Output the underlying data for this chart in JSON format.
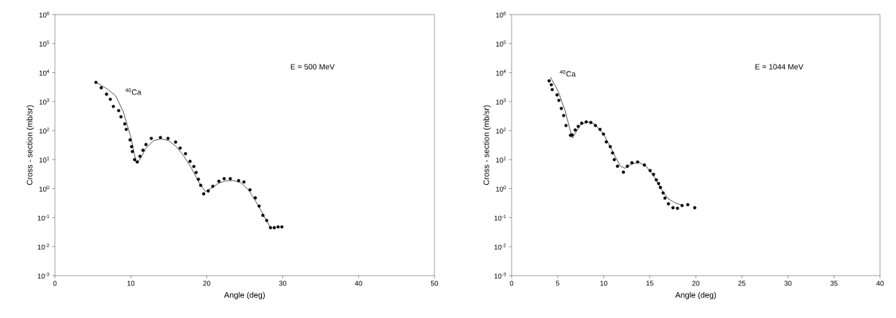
{
  "chart_data": [
    {
      "type": "scatter",
      "xlabel": "Angle (deg)",
      "ylabel": "Cross - section (mb/sr)",
      "log": "y",
      "xlim": [
        0,
        50
      ],
      "xticks": [
        0,
        10,
        20,
        30,
        40,
        50
      ],
      "ylim": [
        0.001,
        1000000
      ],
      "yticks": [
        {
          "value": 0.001,
          "label": "10$^{-3}$"
        },
        {
          "value": 0.01,
          "label": "10$^{-2}$"
        },
        {
          "value": 0.1,
          "label": "10$^{-1}$"
        },
        {
          "value": 1,
          "label": "10$^{0}$"
        },
        {
          "value": 10,
          "label": "10$^{1}$"
        },
        {
          "value": 100,
          "label": "10$^{2}$"
        },
        {
          "value": 1000,
          "label": "10$^{3}$"
        },
        {
          "value": 10000,
          "label": "10$^{4}$"
        },
        {
          "value": 100000,
          "label": "10$^{5}$"
        },
        {
          "value": 1000000,
          "label": "10$^{6}$"
        }
      ],
      "annotations": [
        "E = 500 MeV",
        "$^{40}$Ca"
      ],
      "series": [
        {
          "marker": "circle",
          "color": "#000000",
          "x": [
            5.4,
            6.1,
            6.8,
            7.3,
            7.7,
            8.4,
            8.7,
            9.2,
            9.4,
            9.9,
            10.1,
            10.2,
            10.5,
            10.85,
            11.2,
            11.6,
            12.0,
            12.7,
            13.9,
            14.9,
            15.9,
            16.5,
            17.2,
            17.8,
            18.3,
            18.6,
            18.9,
            19.2,
            19.6,
            20.2,
            20.8,
            21.6,
            22.3,
            23.1,
            24.2,
            24.9,
            25.7,
            26.4,
            26.9,
            27.4,
            27.9,
            28.4,
            28.9,
            29.4,
            29.9
          ],
          "values": [
            4600,
            3000,
            1800,
            1200,
            680,
            490,
            300,
            170,
            110,
            48,
            28,
            19,
            10,
            8.3,
            13,
            21,
            33,
            54,
            58,
            54,
            40,
            25,
            16,
            8.7,
            5.8,
            3.6,
            2.1,
            1.3,
            0.66,
            0.83,
            1.2,
            1.8,
            2.2,
            2.2,
            1.9,
            1.7,
            0.91,
            0.48,
            0.25,
            0.12,
            0.08,
            0.045,
            0.045,
            0.048,
            0.048
          ]
        },
        {
          "type": "line",
          "marker": "none",
          "color": "#000000",
          "line_style": "solid",
          "x": [
            5.5,
            7,
            8,
            9,
            10,
            10.7,
            11.2,
            12,
            13,
            14,
            15,
            16,
            17,
            18,
            19,
            19.8,
            20.5,
            21.5,
            22.5,
            23.5,
            24.5,
            25.5,
            26.5,
            27.5,
            28.3
          ],
          "values": [
            4500,
            2600,
            1600,
            450,
            60,
            8,
            10,
            25,
            45,
            52,
            45,
            28,
            13,
            5,
            1.6,
            0.8,
            1.0,
            1.5,
            1.85,
            1.9,
            1.6,
            0.9,
            0.35,
            0.12,
            0.05
          ]
        }
      ]
    },
    {
      "type": "scatter",
      "xlabel": "Angle (deg)",
      "ylabel": "Cross - section (mb/sr)",
      "log": "y",
      "xlim": [
        0,
        40
      ],
      "xticks": [
        0,
        5,
        10,
        15,
        20,
        25,
        30,
        35,
        40
      ],
      "ylim": [
        0.001,
        1000000
      ],
      "yticks": [
        {
          "value": 0.001,
          "label": "10$^{-3}$"
        },
        {
          "value": 0.01,
          "label": "10$^{-2}$"
        },
        {
          "value": 0.1,
          "label": "10$^{-1}$"
        },
        {
          "value": 1,
          "label": "10$^{0}$"
        },
        {
          "value": 10,
          "label": "10$^{1}$"
        },
        {
          "value": 100,
          "label": "10$^{2}$"
        },
        {
          "value": 1000,
          "label": "10$^{3}$"
        },
        {
          "value": 10000,
          "label": "10$^{4}$"
        },
        {
          "value": 100000,
          "label": "10$^{5}$"
        },
        {
          "value": 1000000,
          "label": "10$^{6}$"
        }
      ],
      "annotations": [
        "E = 1044 MeV",
        "$^{40}$Ca"
      ],
      "series": [
        {
          "marker": "circle",
          "color": "#000000",
          "x": [
            4.07,
            4.31,
            4.41,
            4.93,
            5.13,
            5.4,
            5.65,
            5.9,
            6.39,
            6.57,
            6.91,
            7.23,
            7.61,
            8.1,
            8.6,
            9.1,
            9.6,
            9.97,
            10.28,
            10.71,
            10.96,
            11.15,
            11.5,
            12.14,
            12.57,
            13.06,
            13.68,
            14.42,
            15.04,
            15.41,
            15.71,
            15.96,
            16.16,
            16.45,
            16.65,
            17.03,
            17.52,
            18.01,
            18.51,
            19.13,
            19.88
          ],
          "values": [
            5200,
            3800,
            2600,
            1700,
            1100,
            580,
            330,
            150,
            69,
            71,
            105,
            140,
            180,
            200,
            190,
            150,
            110,
            76,
            41,
            28,
            17,
            10,
            5.9,
            3.7,
            5.9,
            7.8,
            8.3,
            6.5,
            4.2,
            3.1,
            2.0,
            1.5,
            1.1,
            0.71,
            0.47,
            0.3,
            0.22,
            0.21,
            0.26,
            0.28,
            0.22
          ]
        },
        {
          "type": "line",
          "marker": "none",
          "color": "#000000",
          "line_style": "solid",
          "x": [
            4.2,
            5,
            5.8,
            6.3,
            6.6,
            6.9,
            7.5,
            8.2,
            9,
            10,
            11,
            11.8,
            12.3,
            13,
            13.8,
            14.6,
            15.5,
            16.3,
            17,
            17.7,
            18.3,
            18.6
          ],
          "values": [
            7000,
            2500,
            500,
            120,
            55,
            80,
            160,
            200,
            170,
            75,
            18,
            6,
            5,
            7,
            8,
            6,
            2.5,
            0.9,
            0.45,
            0.33,
            0.28,
            0.28
          ]
        }
      ]
    }
  ]
}
